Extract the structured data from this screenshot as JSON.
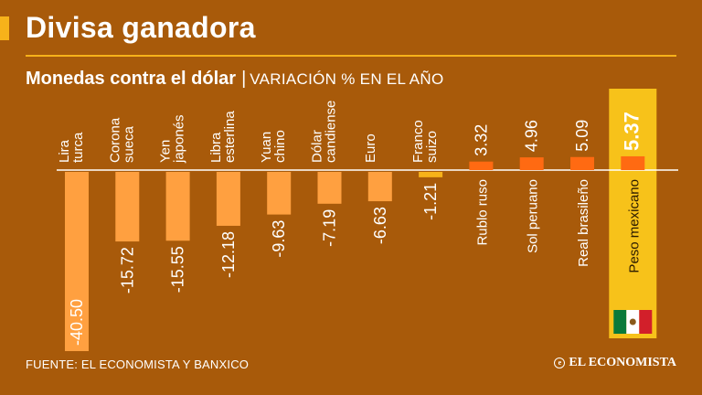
{
  "header": {
    "title": "Divisa ganadora",
    "subtitle_strong": "Monedas contra el dólar",
    "subtitle_separator": "|",
    "subtitle_light": "VARIACIÓN % EN EL AÑO"
  },
  "footer": {
    "source": "FUENTE: EL ECONOMISTA Y BANXICO",
    "brand": "EL ECONOMISTA"
  },
  "colors": {
    "background": "#a85a0a",
    "bar": "#ffa040",
    "bar_positive": "#ff6a12",
    "highlight_band": "#f7c21a",
    "accent": "#f7b21a",
    "franc_bar": "#f7b21a"
  },
  "chart_data": {
    "type": "bar",
    "title": "Monedas contra el dólar",
    "subtitle": "VARIACIÓN % EN EL AÑO",
    "unit": "%",
    "highlight": "Peso mexicano",
    "categories": [
      {
        "line1": "Lira",
        "line2": "turca"
      },
      {
        "line1": "Corona",
        "line2": "sueca"
      },
      {
        "line1": "Yen",
        "line2": "japonés"
      },
      {
        "line1": "Libra",
        "line2": "esterlina"
      },
      {
        "line1": "Yuan",
        "line2": "chino"
      },
      {
        "line1": "Dólar",
        "line2": "candiense"
      },
      {
        "line1": "Euro",
        "line2": ""
      },
      {
        "line1": "Franco",
        "line2": "suizo"
      },
      {
        "line1": "Rublo ruso",
        "line2": ""
      },
      {
        "line1": "Sol peruano",
        "line2": ""
      },
      {
        "line1": "Real brasileño",
        "line2": ""
      },
      {
        "line1": "Peso mexicano",
        "line2": ""
      }
    ],
    "values": [
      -40.5,
      -15.72,
      -15.55,
      -12.18,
      -9.63,
      -7.19,
      -6.63,
      -1.21,
      3.32,
      4.96,
      5.09,
      5.37
    ],
    "value_labels": [
      "-40.50",
      "-15.72",
      "-15.55",
      "-12.18",
      "-9.63",
      "-7.19",
      "-6.63",
      "-1.21",
      "3.32",
      "4.96",
      "5.09",
      "5.37"
    ],
    "ylim": [
      -40.5,
      5.37
    ]
  }
}
